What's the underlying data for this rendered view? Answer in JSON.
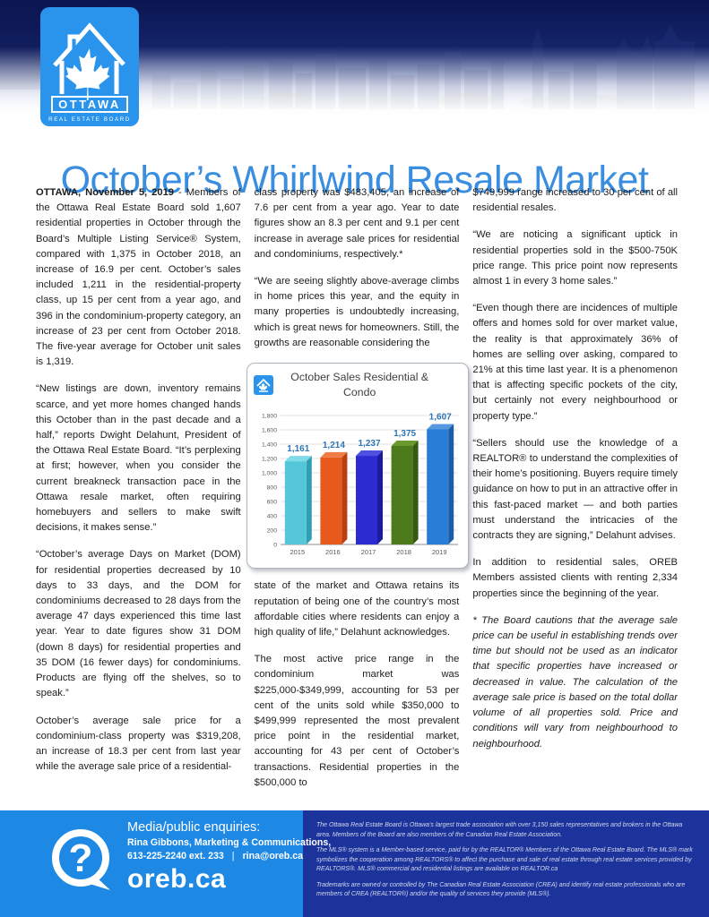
{
  "colors": {
    "brand_blue": "#2a93ec",
    "title_blue": "#3a8ee0",
    "footer_blue": "#1e88e5",
    "footer_navy": "#1b339b"
  },
  "header": {
    "logo": {
      "city": "OTTAWA",
      "subtitle": "REAL ESTATE BOARD"
    },
    "title": "October’s Whirlwind Resale Market"
  },
  "body": {
    "col1": {
      "p1_lead": "OTTAWA, November 5, 2019",
      "p1_rest": " - Members of the Ottawa Real Estate Board sold 1,607 residential properties in October through the Board’s Multiple Listing Service® System, compared with 1,375 in October 2018, an increase of 16.9 per cent. October’s sales included 1,211 in the residential-property class, up 15 per cent from a year ago, and 396 in the condominium-property category, an increase of 23 per cent from October 2018. The five-year average for October unit sales is 1,319.",
      "p2": "“New listings are down, inventory remains scarce, and yet more homes changed hands this October than in the past decade and a half,” reports Dwight Delahunt, President of the Ottawa Real Estate Board. “It’s perplexing at first; however, when you consider the current breakneck transaction pace in the Ottawa resale market, often requiring homebuyers and sellers to make swift decisions, it makes sense.”",
      "p3": "“October’s average Days on Market (DOM) for residential properties decreased by 10 days to 33 days, and the DOM for condominiums decreased to 28 days from the average 47 days experienced this time last year. Year to date figures show 31 DOM (down 8 days) for residential properties and 35 DOM (16 fewer days) for condominiums. Products are flying off the shelves, so to speak.”",
      "p4": "October’s average sale price for a condominium-class property was $319,208, an increase of 18.3 per cent from last year while the average sale price of a residential-"
    },
    "col2": {
      "p1": "class property was $483,405, an increase of 7.6 per cent from a year ago. Year to date figures show an 8.3 per cent and 9.1 per cent increase in average sale prices for residential and condominiums, respectively.*",
      "p2": "“We are seeing slightly above-average climbs in home prices this year, and the equity in many properties is undoubtedly increasing, which is great news for homeowners. Still, the growths are reasonable considering the",
      "p3": "state of the market and Ottawa retains its reputation of being one of the country’s most affordable cities where residents can enjoy a high quality of life,” Delahunt acknowledges.",
      "p4": "The most active price range in the condominium market was $225,000-$349,999, accounting for 53 per cent of the units sold while $350,000 to $499,999 represented the most prevalent price point in the residential market, accounting for 43 per cent of October’s transactions. Residential properties in the $500,000 to"
    },
    "col3": {
      "p1": "$749,999 range increased to 30 per cent of all residential resales.",
      "p2": "“We are noticing a significant uptick in residential properties sold in the $500-750K price range. This price point now represents almost 1 in every 3 home sales.”",
      "p3": "“Even though there are incidences of multiple offers and homes sold for over market value, the reality is that approximately 36% of homes are selling over asking, compared to 21% at this time last year. It is a phenomenon that is affecting specific pockets of the city, but certainly not every neighbourhood or property type.”",
      "p4": "“Sellers should use the knowledge of a REALTOR® to understand the complexities of their home’s positioning. Buyers require timely guidance on how to put in an attractive offer in this fast-paced market — and both parties must understand the intricacies of the contracts they are signing,” Delahunt advises.",
      "p5": "In addition to residential sales, OREB Members assisted clients with renting 2,334 properties since the beginning of the year.",
      "p6": "* The Board cautions that the average sale price can be useful in establishing trends over time but should not be used as an indicator that specific properties have increased or decreased in value. The calculation of the average sale price is based on the total dollar volume of all properties sold. Price and conditions will vary from neighbourhood to neighbourhood."
    }
  },
  "chart_data": {
    "type": "bar",
    "title": "October Sales Residential & Condo",
    "categories": [
      "2015",
      "2016",
      "2017",
      "2018",
      "2019"
    ],
    "values": [
      1161,
      1214,
      1237,
      1375,
      1607
    ],
    "labels": [
      "1,161",
      "1,214",
      "1,237",
      "1,375",
      "1,607"
    ],
    "bar_colors": [
      "#53c6d8",
      "#e8591d",
      "#2b2bd1",
      "#4d7a1c",
      "#2a7dd4"
    ],
    "bar_side_colors": [
      "#2e9fb5",
      "#b93f10",
      "#1b1b9e",
      "#355a10",
      "#1a5ca8"
    ],
    "bar_top_colors": [
      "#7fdbe8",
      "#f07c45",
      "#5050e0",
      "#6a9a2e",
      "#5598e0"
    ],
    "label_color": "#2e75b6",
    "xlabel": "",
    "ylabel": "",
    "ylim": [
      0,
      1800
    ],
    "ytick_step": 200,
    "yticks": [
      "0",
      "200",
      "400",
      "600",
      "800",
      "1,000",
      "1,200",
      "1,400",
      "1,600",
      "1,800"
    ],
    "grid": true,
    "legend": "none"
  },
  "footer": {
    "enquiries_heading": "Media/public enquiries:",
    "contact_name": "Rina Gibbons, Marketing & Communications,",
    "contact_phone": "613-225-2240 ext. 233",
    "contact_separator": "|",
    "contact_email": "rina@oreb.ca",
    "website": "oreb.ca",
    "legal1": "The Ottawa Real Estate Board is Ottawa's largest trade association with over 3,150 sales representatives and brokers in the Ottawa area. Members of the Board are also members of the Canadian Real Estate Association.",
    "legal2": "The MLS® system is a Member-based service, paid for by the REALTOR® Members of the Ottawa Real Estate Board. The MLS® mark symbolizes the cooperation among REALTORS® to affect the purchase and sale of real estate through real estate services provided by REALTORS®. MLS® commercial and residential listings are available on REALTOR.ca",
    "legal3": "Trademarks are owned or controlled by The Canadian Real Estate Association (CREA) and identify real estate professionals who are members of CREA (REALTOR®) and/or the quality of services they provide (MLS®)."
  }
}
